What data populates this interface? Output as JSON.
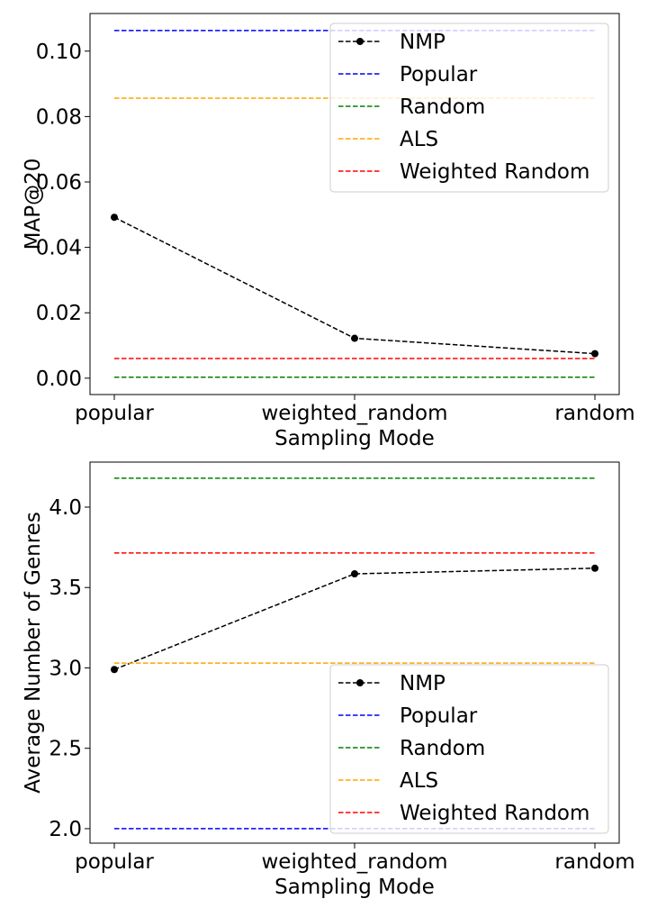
{
  "chart_data": [
    {
      "type": "line",
      "x": [
        "popular",
        "weighted_random",
        "random"
      ],
      "xlabel": "Sampling Mode",
      "ylabel": "MAP@20",
      "ylim": [
        -0.005,
        0.1115
      ],
      "yticks": [
        0.0,
        0.02,
        0.04,
        0.06,
        0.08,
        0.1
      ],
      "ytick_labels": [
        "0.00",
        "0.02",
        "0.04",
        "0.06",
        "0.08",
        "0.10"
      ],
      "grid": false,
      "legend_placement": "upper-right",
      "series": [
        {
          "name": "NMP",
          "values": [
            0.0492,
            0.0122,
            0.0075
          ],
          "color": "#000000",
          "style": "dashed",
          "marker": "circle"
        },
        {
          "name": "Popular",
          "values": [
            0.1063,
            0.1063,
            0.1063
          ],
          "color": "#0000ff",
          "style": "dashed"
        },
        {
          "name": "Random",
          "values": [
            0.0003,
            0.0003,
            0.0003
          ],
          "color": "#008000",
          "style": "dashed"
        },
        {
          "name": "ALS",
          "values": [
            0.0856,
            0.0856,
            0.0856
          ],
          "color": "#ffa500",
          "style": "dashed"
        },
        {
          "name": "Weighted Random",
          "values": [
            0.006,
            0.006,
            0.006
          ],
          "color": "#ff0000",
          "style": "dashed"
        }
      ]
    },
    {
      "type": "line",
      "x": [
        "popular",
        "weighted_random",
        "random"
      ],
      "xlabel": "Sampling Mode",
      "ylabel": "Average Number of Genres",
      "ylim": [
        1.91,
        4.28
      ],
      "yticks": [
        2.0,
        2.5,
        3.0,
        3.5,
        4.0
      ],
      "ytick_labels": [
        "2.0",
        "2.5",
        "3.0",
        "3.5",
        "4.0"
      ],
      "grid": false,
      "legend_placement": "lower-right",
      "series": [
        {
          "name": "NMP",
          "values": [
            2.99,
            3.585,
            3.62
          ],
          "color": "#000000",
          "style": "dashed",
          "marker": "circle"
        },
        {
          "name": "Popular",
          "values": [
            2.0,
            2.0,
            2.0
          ],
          "color": "#0000ff",
          "style": "dashed"
        },
        {
          "name": "Random",
          "values": [
            4.18,
            4.18,
            4.18
          ],
          "color": "#008000",
          "style": "dashed"
        },
        {
          "name": "ALS",
          "values": [
            3.03,
            3.03,
            3.03
          ],
          "color": "#ffa500",
          "style": "dashed"
        },
        {
          "name": "Weighted Random",
          "values": [
            3.715,
            3.715,
            3.715
          ],
          "color": "#ff0000",
          "style": "dashed"
        }
      ]
    }
  ]
}
